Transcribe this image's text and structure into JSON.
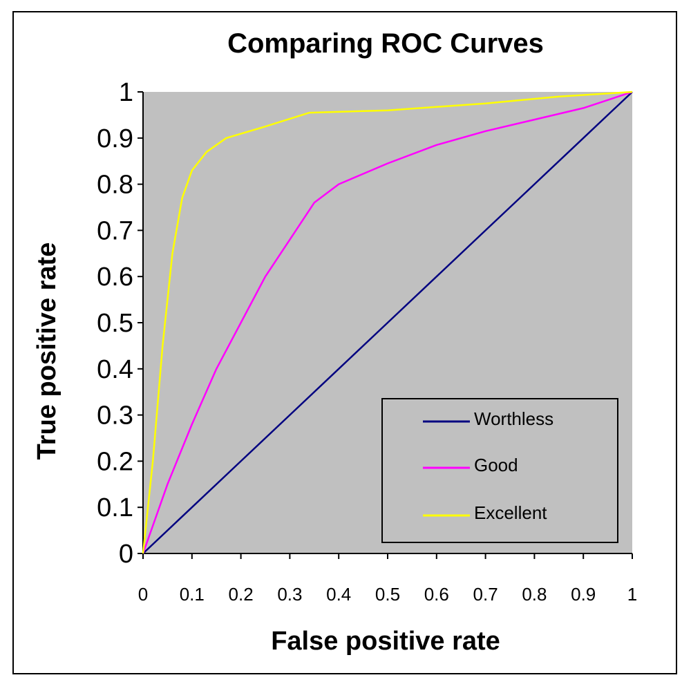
{
  "chart_data": {
    "type": "line",
    "title": "Comparing ROC Curves",
    "xlabel": "False positive rate",
    "ylabel": "True positive rate",
    "xlim": [
      0,
      1
    ],
    "ylim": [
      0,
      1
    ],
    "xticks": [
      "0",
      "0.1",
      "0.2",
      "0.3",
      "0.4",
      "0.5",
      "0.6",
      "0.7",
      "0.8",
      "0.9",
      "1"
    ],
    "yticks": [
      "0",
      "0.1",
      "0.2",
      "0.3",
      "0.4",
      "0.5",
      "0.6",
      "0.7",
      "0.8",
      "0.9",
      "1"
    ],
    "grid": false,
    "legend_position": "bottom-right",
    "plot_background": "#c0c0c0",
    "series": [
      {
        "name": "Worthless",
        "color": "#000080",
        "points": [
          [
            0,
            0
          ],
          [
            0.1,
            0.1
          ],
          [
            0.2,
            0.2
          ],
          [
            0.3,
            0.3
          ],
          [
            0.4,
            0.4
          ],
          [
            0.5,
            0.5
          ],
          [
            0.6,
            0.6
          ],
          [
            0.7,
            0.7
          ],
          [
            0.8,
            0.8
          ],
          [
            0.9,
            0.9
          ],
          [
            1,
            1
          ]
        ]
      },
      {
        "name": "Good",
        "color": "#ff00ff",
        "points": [
          [
            0,
            0
          ],
          [
            0.05,
            0.15
          ],
          [
            0.1,
            0.28
          ],
          [
            0.15,
            0.4
          ],
          [
            0.2,
            0.5
          ],
          [
            0.25,
            0.6
          ],
          [
            0.3,
            0.68
          ],
          [
            0.35,
            0.76
          ],
          [
            0.4,
            0.8
          ],
          [
            0.5,
            0.845
          ],
          [
            0.6,
            0.885
          ],
          [
            0.7,
            0.915
          ],
          [
            0.8,
            0.94
          ],
          [
            0.9,
            0.965
          ],
          [
            1,
            1
          ]
        ]
      },
      {
        "name": "Excellent",
        "color": "#ffff00",
        "points": [
          [
            0,
            0
          ],
          [
            0.02,
            0.2
          ],
          [
            0.04,
            0.45
          ],
          [
            0.06,
            0.65
          ],
          [
            0.08,
            0.77
          ],
          [
            0.1,
            0.83
          ],
          [
            0.13,
            0.87
          ],
          [
            0.17,
            0.9
          ],
          [
            0.25,
            0.925
          ],
          [
            0.34,
            0.955
          ],
          [
            0.5,
            0.96
          ],
          [
            0.7,
            0.975
          ],
          [
            0.85,
            0.99
          ],
          [
            1,
            1
          ]
        ]
      }
    ]
  }
}
